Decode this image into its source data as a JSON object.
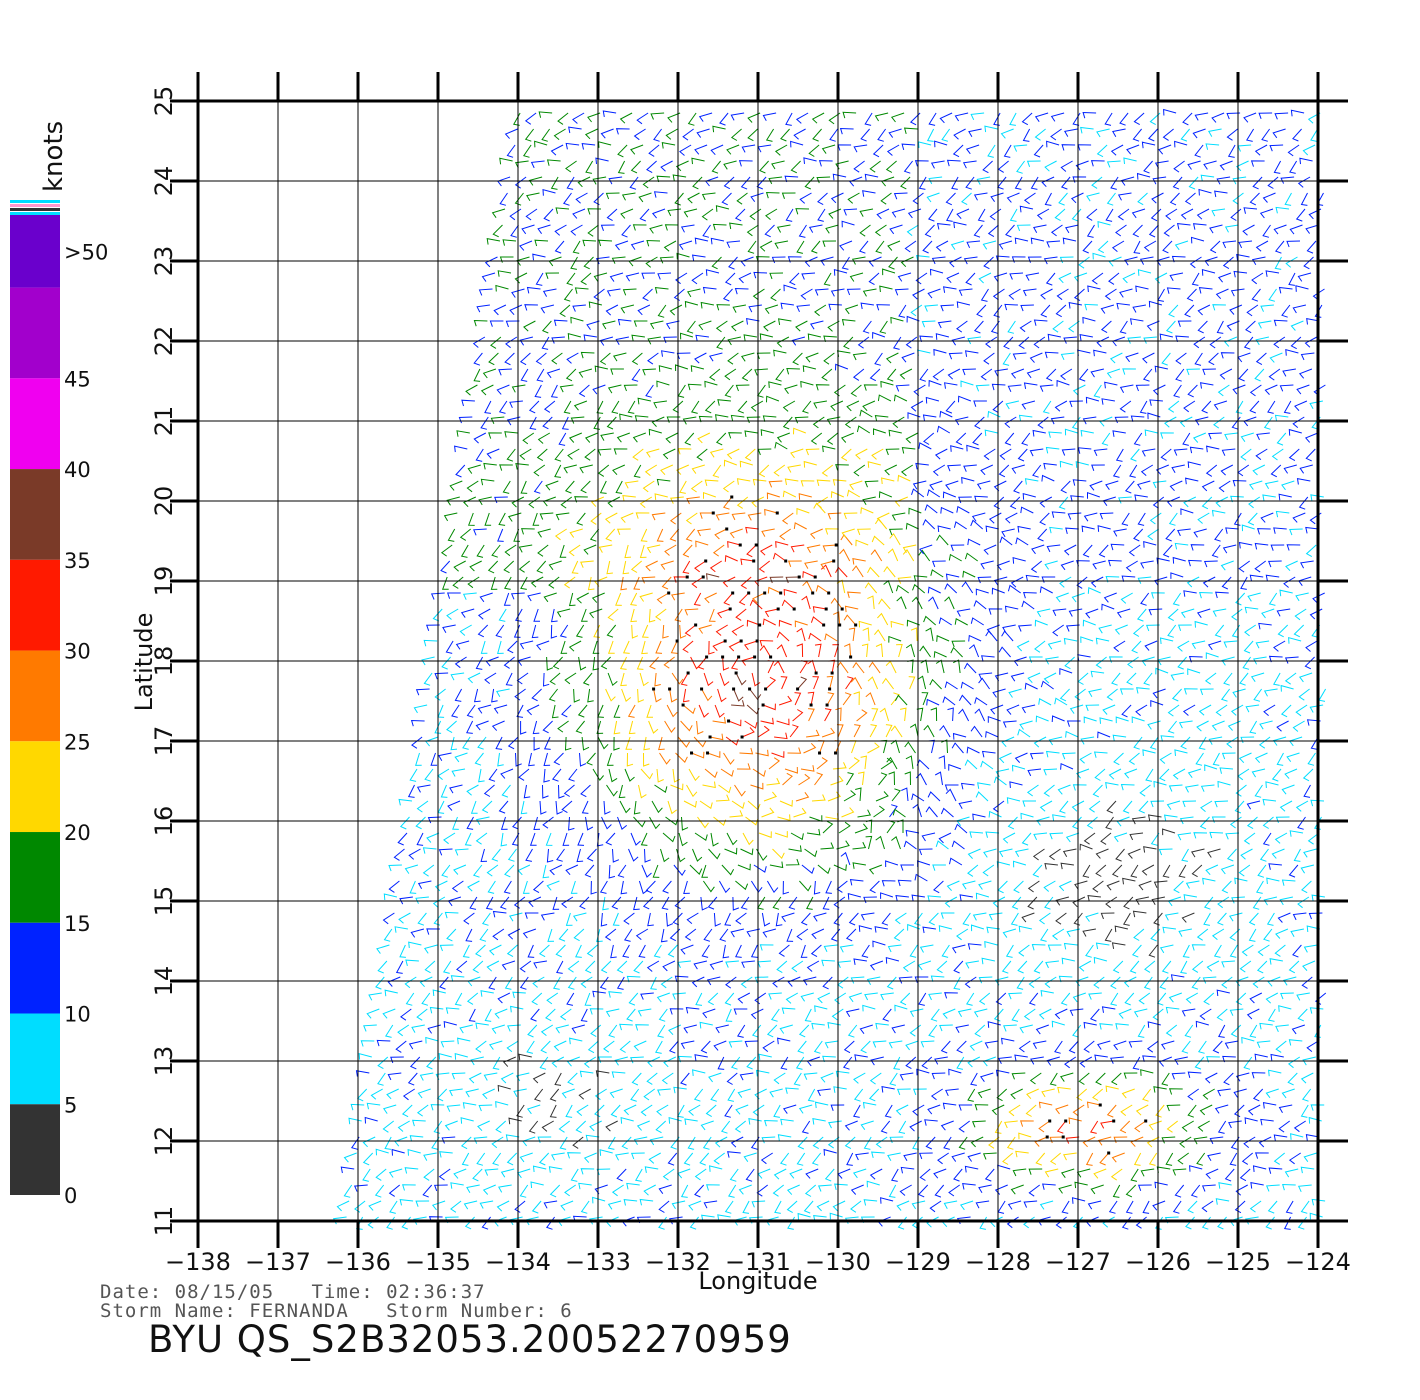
{
  "colorbar": {
    "unit_label": "knots",
    "tick_labels": [
      ">50",
      "45",
      "40",
      "35",
      "30",
      "25",
      "20",
      "15",
      "10",
      "5",
      "0"
    ],
    "bands": [
      {
        "from": 50,
        "to": 54,
        "color": "#6a00cc"
      },
      {
        "from": 45,
        "to": 50,
        "color": "#a200cc"
      },
      {
        "from": 40,
        "to": 45,
        "color": "#f000f0"
      },
      {
        "from": 35,
        "to": 40,
        "color": "#7a3a28"
      },
      {
        "from": 30,
        "to": 35,
        "color": "#ff1a00"
      },
      {
        "from": 25,
        "to": 30,
        "color": "#ff7a00"
      },
      {
        "from": 20,
        "to": 25,
        "color": "#ffd800"
      },
      {
        "from": 15,
        "to": 20,
        "color": "#008800"
      },
      {
        "from": 10,
        "to": 15,
        "color": "#0022ff"
      },
      {
        "from": 5,
        "to": 10,
        "color": "#00ddff"
      },
      {
        "from": 0,
        "to": 5,
        "color": "#333333"
      }
    ]
  },
  "map": {
    "x_axis_label": "Longitude",
    "y_axis_label": "Latitude",
    "x_range": [
      -138,
      -124
    ],
    "y_range": [
      11,
      25
    ],
    "x_tick_labels": [
      "-138",
      "-137",
      "-136",
      "-135",
      "-134",
      "-133",
      "-132",
      "-131",
      "-130",
      "-129",
      "-128",
      "-127",
      "-126",
      "-125",
      "-124"
    ],
    "y_tick_labels": [
      "11",
      "12",
      "13",
      "14",
      "15",
      "16",
      "17",
      "18",
      "19",
      "20",
      "21",
      "22",
      "23",
      "24",
      "25"
    ],
    "swath_corners": {
      "top_left": [
        -134.0,
        25.0
      ],
      "bottom_left": [
        -136.2,
        11.0
      ],
      "right": -123.9
    },
    "storm_center": {
      "lon": -131.0,
      "lat": 17.9
    },
    "secondary_maximum": {
      "lon": -126.8,
      "lat": 12.2
    }
  },
  "footer": {
    "date_line": "Date: 08/15/05   Time: 02:36:37",
    "storm_line": "Storm Name: FERNANDA   Storm Number: 6",
    "product_id": "BYU  QS_S2B32053.20052270959"
  }
}
